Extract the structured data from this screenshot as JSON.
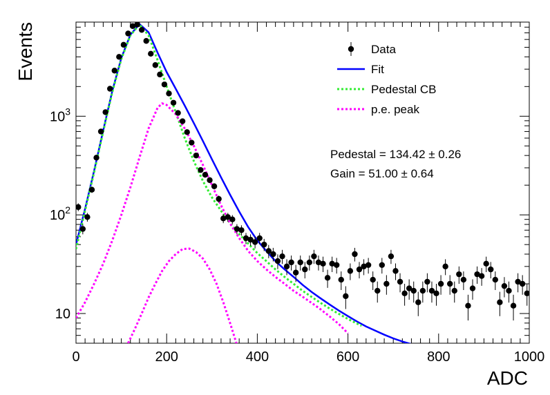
{
  "chart_data": {
    "type": "scatter",
    "title": "",
    "xlabel": "ADC",
    "ylabel": "Events",
    "xlim": [
      0,
      1000
    ],
    "ylim": [
      5,
      9000
    ],
    "y_scale": "log",
    "grid": false,
    "legend_placement": "top-right",
    "x_ticks": [
      "0",
      "200",
      "400",
      "600",
      "800",
      "1000"
    ],
    "x_tick_values": [
      0,
      200,
      400,
      600,
      800,
      1000
    ],
    "y_ticks": [
      "10",
      "10^2",
      "10^3"
    ],
    "y_tick_values": [
      10,
      100,
      1000
    ],
    "legend": [
      {
        "label": "Data",
        "style": "marker",
        "color": "#000000"
      },
      {
        "label": "Fit",
        "style": "solid",
        "color": "#0000ff"
      },
      {
        "label": "Pedestal CB",
        "style": "dotted",
        "color": "#33ee33"
      },
      {
        "label": "p.e. peak",
        "style": "dotted",
        "color": "#ff00ff"
      }
    ],
    "annotations": [
      "Pedestal = 134.42 ± 0.26",
      "Gain = 51.00 ± 0.64"
    ],
    "series": [
      {
        "name": "Data",
        "kind": "points",
        "color": "#000000",
        "x": [
          5,
          15,
          25,
          35,
          45,
          55,
          65,
          75,
          85,
          95,
          105,
          115,
          125,
          135,
          145,
          155,
          165,
          175,
          185,
          195,
          205,
          215,
          225,
          235,
          245,
          255,
          265,
          275,
          285,
          295,
          305,
          315,
          325,
          335,
          345,
          355,
          365,
          375,
          385,
          395,
          405,
          415,
          425,
          435,
          445,
          455,
          465,
          475,
          485,
          495,
          505,
          515,
          525,
          535,
          545,
          555,
          565,
          575,
          585,
          595,
          605,
          615,
          625,
          635,
          645,
          655,
          665,
          675,
          685,
          695,
          705,
          715,
          725,
          735,
          745,
          755,
          765,
          775,
          785,
          795,
          805,
          815,
          825,
          835,
          845,
          855,
          865,
          875,
          885,
          895,
          905,
          915,
          925,
          935,
          945,
          955,
          965,
          975,
          985,
          995
        ],
        "y": [
          120,
          72,
          95,
          180,
          380,
          700,
          1100,
          1900,
          2900,
          4000,
          5300,
          6900,
          8200,
          8500,
          7500,
          5800,
          4300,
          3300,
          2650,
          2100,
          1700,
          1370,
          1080,
          890,
          690,
          540,
          400,
          285,
          255,
          225,
          195,
          145,
          92,
          95,
          90,
          72,
          70,
          58,
          56,
          53,
          58,
          50,
          43,
          40,
          34,
          38,
          30,
          33,
          26,
          33,
          28,
          33,
          38,
          33,
          32,
          23,
          32,
          31,
          22,
          15,
          27,
          40,
          28,
          30,
          31,
          22,
          17,
          31,
          20,
          38,
          27,
          21,
          16,
          18,
          17,
          13,
          17,
          21,
          17,
          16,
          20,
          30,
          20,
          17,
          25,
          22,
          12,
          18,
          25,
          24,
          32,
          28,
          22,
          13,
          19,
          17,
          12,
          21,
          20,
          16
        ],
        "err": [
          11,
          8.5,
          9.7,
          13,
          19,
          26,
          33,
          44,
          54,
          63,
          73,
          83,
          91,
          92,
          87,
          76,
          66,
          57,
          51,
          46,
          41,
          37,
          33,
          30,
          26,
          23,
          20,
          17,
          16,
          15,
          14,
          12,
          9.6,
          9.7,
          9.5,
          8.5,
          8.4,
          7.6,
          7.5,
          7.3,
          7.6,
          7.1,
          6.6,
          6.3,
          5.8,
          6.2,
          5.5,
          5.7,
          5.1,
          5.7,
          5.3,
          5.7,
          6.2,
          5.7,
          5.7,
          4.8,
          5.7,
          5.6,
          4.7,
          3.9,
          5.2,
          6.3,
          5.3,
          5.5,
          5.6,
          4.7,
          4.1,
          5.6,
          4.5,
          6.2,
          5.2,
          4.6,
          4,
          4.2,
          4.1,
          3.6,
          4.1,
          4.6,
          4.1,
          4,
          4.5,
          5.5,
          4.5,
          4.1,
          5,
          4.7,
          3.5,
          4.2,
          5,
          4.9,
          5.7,
          5.3,
          4.7,
          3.6,
          4.4,
          4.1,
          3.5,
          4.6,
          4.5,
          4
        ]
      },
      {
        "name": "Fit",
        "kind": "line",
        "color": "#0000ff",
        "x": [
          0,
          20,
          40,
          60,
          80,
          100,
          120,
          140,
          160,
          180,
          200,
          220,
          240,
          260,
          280,
          300,
          320,
          340,
          360,
          380,
          400,
          420,
          440,
          460,
          480,
          500,
          520,
          540,
          560,
          580,
          600,
          620,
          640,
          660,
          680,
          700,
          720,
          740,
          760,
          780
        ],
        "y": [
          50,
          115,
          280,
          720,
          1800,
          3900,
          6700,
          8600,
          7100,
          4400,
          2800,
          1900,
          1280,
          850,
          560,
          365,
          240,
          160,
          108,
          75,
          55,
          43,
          34,
          28,
          23.5,
          19.5,
          16.5,
          14.2,
          12.3,
          10.7,
          9.4,
          8.3,
          7.4,
          6.7,
          6.1,
          5.6,
          5.2,
          4.9,
          4.6,
          4.4
        ]
      },
      {
        "name": "Pedestal CB",
        "kind": "line",
        "color": "#33ee33",
        "x": [
          0,
          20,
          40,
          60,
          80,
          100,
          120,
          140,
          160,
          180,
          200,
          220,
          240,
          260,
          280,
          300,
          320,
          340,
          360,
          380,
          400,
          420,
          440,
          460,
          480,
          500,
          520,
          540,
          560,
          580,
          600,
          620,
          630
        ],
        "y": [
          45,
          110,
          270,
          700,
          1750,
          3800,
          6600,
          8500,
          6600,
          3700,
          2000,
          1100,
          600,
          350,
          220,
          150,
          110,
          82,
          64,
          51,
          41,
          34,
          28,
          23.5,
          20,
          17,
          14.7,
          12.8,
          11.2,
          9.9,
          8.8,
          7.9,
          7.5
        ]
      },
      {
        "name": "p.e. peak",
        "kind": "line",
        "color": "#ff00ff",
        "x": [
          0,
          20,
          40,
          60,
          80,
          100,
          120,
          140,
          160,
          180,
          190,
          200,
          220,
          240,
          260,
          280,
          300,
          320,
          340,
          360,
          380,
          400,
          420,
          440,
          460,
          480,
          500,
          520,
          540,
          560,
          580,
          600
        ],
        "y": [
          9,
          13,
          20,
          32,
          55,
          100,
          190,
          380,
          750,
          1220,
          1350,
          1300,
          1050,
          750,
          500,
          320,
          200,
          125,
          82,
          58,
          43,
          34,
          28,
          23.5,
          20,
          17,
          14.8,
          12.8,
          11,
          9.3,
          7.8,
          6.3
        ]
      },
      {
        "name": "",
        "kind": "line",
        "color": "#ff00ff",
        "x": [
          115,
          130,
          145,
          160,
          175,
          190,
          205,
          220,
          235,
          250,
          265,
          280,
          295,
          310,
          325,
          340,
          355
        ],
        "y": [
          5,
          7,
          10,
          14.5,
          20,
          27,
          34,
          40,
          45,
          45.5,
          42,
          36,
          28,
          20,
          13,
          8,
          4.8
        ]
      }
    ]
  }
}
